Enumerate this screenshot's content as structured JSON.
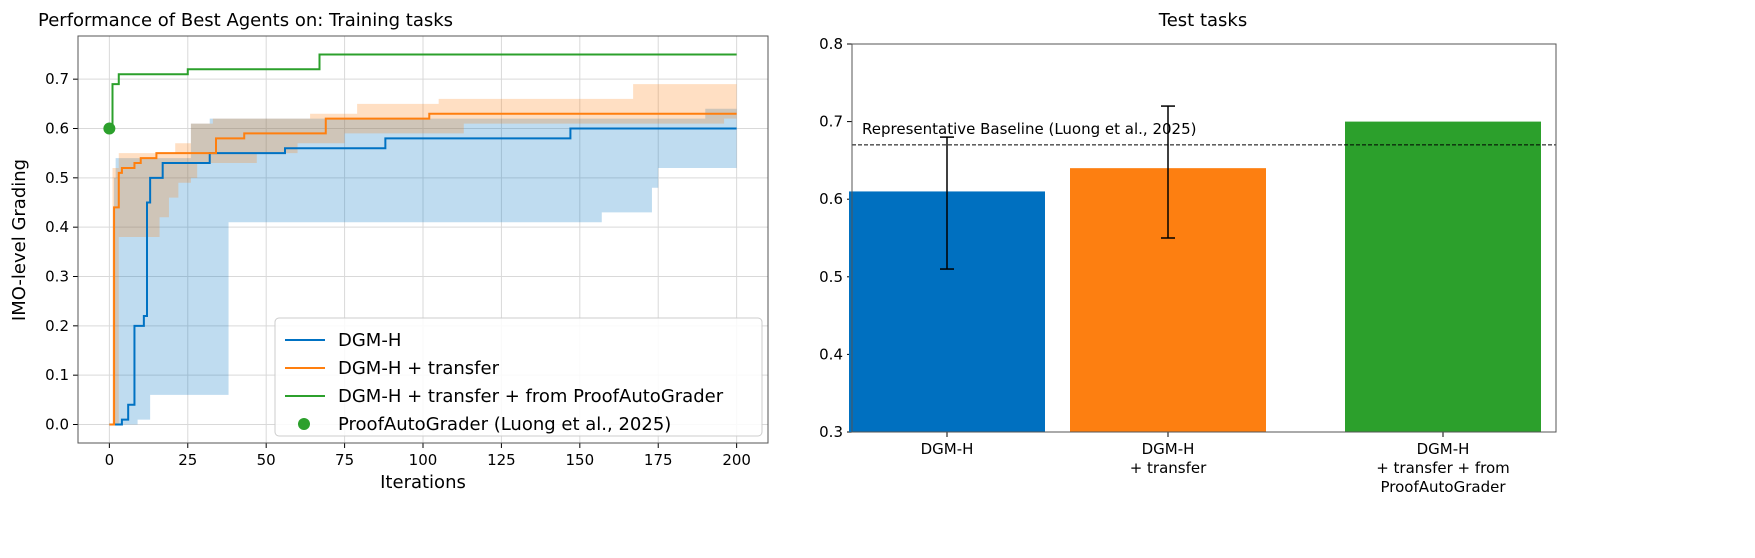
{
  "colors": {
    "blue": "#0072c3",
    "orange": "#ff7f0e",
    "green": "#2ca02c",
    "bar_blue": "#0070c0",
    "bar_orange": "#fd7f11",
    "bar_green": "#2ca02c"
  },
  "chart_data": [
    {
      "type": "line",
      "title": "Performance of Best Agents on: Training tasks",
      "xlabel": "Iterations",
      "ylabel": "IMO-level Grading",
      "xlim": [
        -10,
        210
      ],
      "ylim": [
        -0.0375,
        0.7875
      ],
      "xticks": [
        "0",
        "25",
        "50",
        "75",
        "100",
        "125",
        "150",
        "175",
        "200"
      ],
      "yticks": [
        "0.0",
        "0.1",
        "0.2",
        "0.3",
        "0.4",
        "0.5",
        "0.6",
        "0.7"
      ],
      "grid": true,
      "legend_position": "lower-right",
      "series": [
        {
          "name": "DGM-H",
          "color": "blue",
          "step": true,
          "points": [
            [
              0,
              0
            ],
            [
              4,
              0.01
            ],
            [
              6,
              0.04
            ],
            [
              8,
              0.2
            ],
            [
              10,
              0.2
            ],
            [
              11,
              0.22
            ],
            [
              12,
              0.45
            ],
            [
              13,
              0.5
            ],
            [
              17,
              0.53
            ],
            [
              32,
              0.55
            ],
            [
              56,
              0.56
            ],
            [
              88,
              0.58
            ],
            [
              147,
              0.6
            ],
            [
              200,
              0.6
            ]
          ],
          "band_upper": [
            [
              1.5,
              0.5
            ],
            [
              2,
              0.54
            ],
            [
              26,
              0.61
            ],
            [
              32,
              0.62
            ],
            [
              190,
              0.64
            ],
            [
              200,
              0.64
            ]
          ],
          "band_lower": [
            [
              1.5,
              0
            ],
            [
              9,
              0.01
            ],
            [
              13,
              0.06
            ],
            [
              38,
              0.41
            ],
            [
              157,
              0.43
            ],
            [
              173,
              0.48
            ],
            [
              175,
              0.52
            ],
            [
              200,
              0.52
            ]
          ]
        },
        {
          "name": "DGM-H + transfer",
          "color": "orange",
          "step": true,
          "points": [
            [
              0,
              0
            ],
            [
              1.5,
              0.44
            ],
            [
              3,
              0.51
            ],
            [
              4,
              0.52
            ],
            [
              8,
              0.53
            ],
            [
              10,
              0.54
            ],
            [
              15,
              0.55
            ],
            [
              34,
              0.58
            ],
            [
              43,
              0.59
            ],
            [
              69,
              0.62
            ],
            [
              102,
              0.63
            ],
            [
              200,
              0.63
            ]
          ],
          "band_upper": [
            [
              1,
              0.52
            ],
            [
              3,
              0.55
            ],
            [
              21,
              0.57
            ],
            [
              26,
              0.61
            ],
            [
              33,
              0.62
            ],
            [
              64,
              0.63
            ],
            [
              79,
              0.65
            ],
            [
              105,
              0.66
            ],
            [
              167,
              0.69
            ],
            [
              200,
              0.69
            ]
          ],
          "band_lower": [
            [
              1,
              0
            ],
            [
              3,
              0.38
            ],
            [
              16,
              0.42
            ],
            [
              19,
              0.46
            ],
            [
              22,
              0.49
            ],
            [
              26,
              0.5
            ],
            [
              28,
              0.53
            ],
            [
              47,
              0.55
            ],
            [
              60,
              0.57
            ],
            [
              75,
              0.59
            ],
            [
              113,
              0.61
            ],
            [
              196,
              0.62
            ],
            [
              200,
              0.62
            ]
          ]
        },
        {
          "name": "DGM-H + transfer + from ProofAutoGrader",
          "color": "green",
          "step": true,
          "points": [
            [
              0,
              0.6
            ],
            [
              1,
              0.69
            ],
            [
              3,
              0.71
            ],
            [
              25,
              0.72
            ],
            [
              67,
              0.75
            ],
            [
              200,
              0.75
            ]
          ]
        },
        {
          "name": "ProofAutoGrader (Luong et al., 2025)",
          "color": "green",
          "type": "scatter",
          "points": [
            [
              0,
              0.6
            ]
          ]
        }
      ]
    },
    {
      "type": "bar",
      "title": "Test tasks",
      "categories": [
        [
          "DGM-H"
        ],
        [
          "DGM-H",
          "+ transfer"
        ],
        [
          "DGM-H",
          "+ transfer + from",
          "ProofAutoGrader"
        ]
      ],
      "values": [
        0.61,
        0.64,
        0.7
      ],
      "error_low": [
        0.51,
        0.55,
        null
      ],
      "error_high": [
        0.68,
        0.72,
        null
      ],
      "bar_colors": [
        "bar_blue",
        "bar_orange",
        "bar_green"
      ],
      "ylim": [
        0.3,
        0.8
      ],
      "yticks": [
        "0.3",
        "0.4",
        "0.5",
        "0.6",
        "0.7",
        "0.8"
      ],
      "baseline": {
        "value": 0.67,
        "label": "Representative Baseline (Luong et al., 2025)"
      }
    }
  ]
}
